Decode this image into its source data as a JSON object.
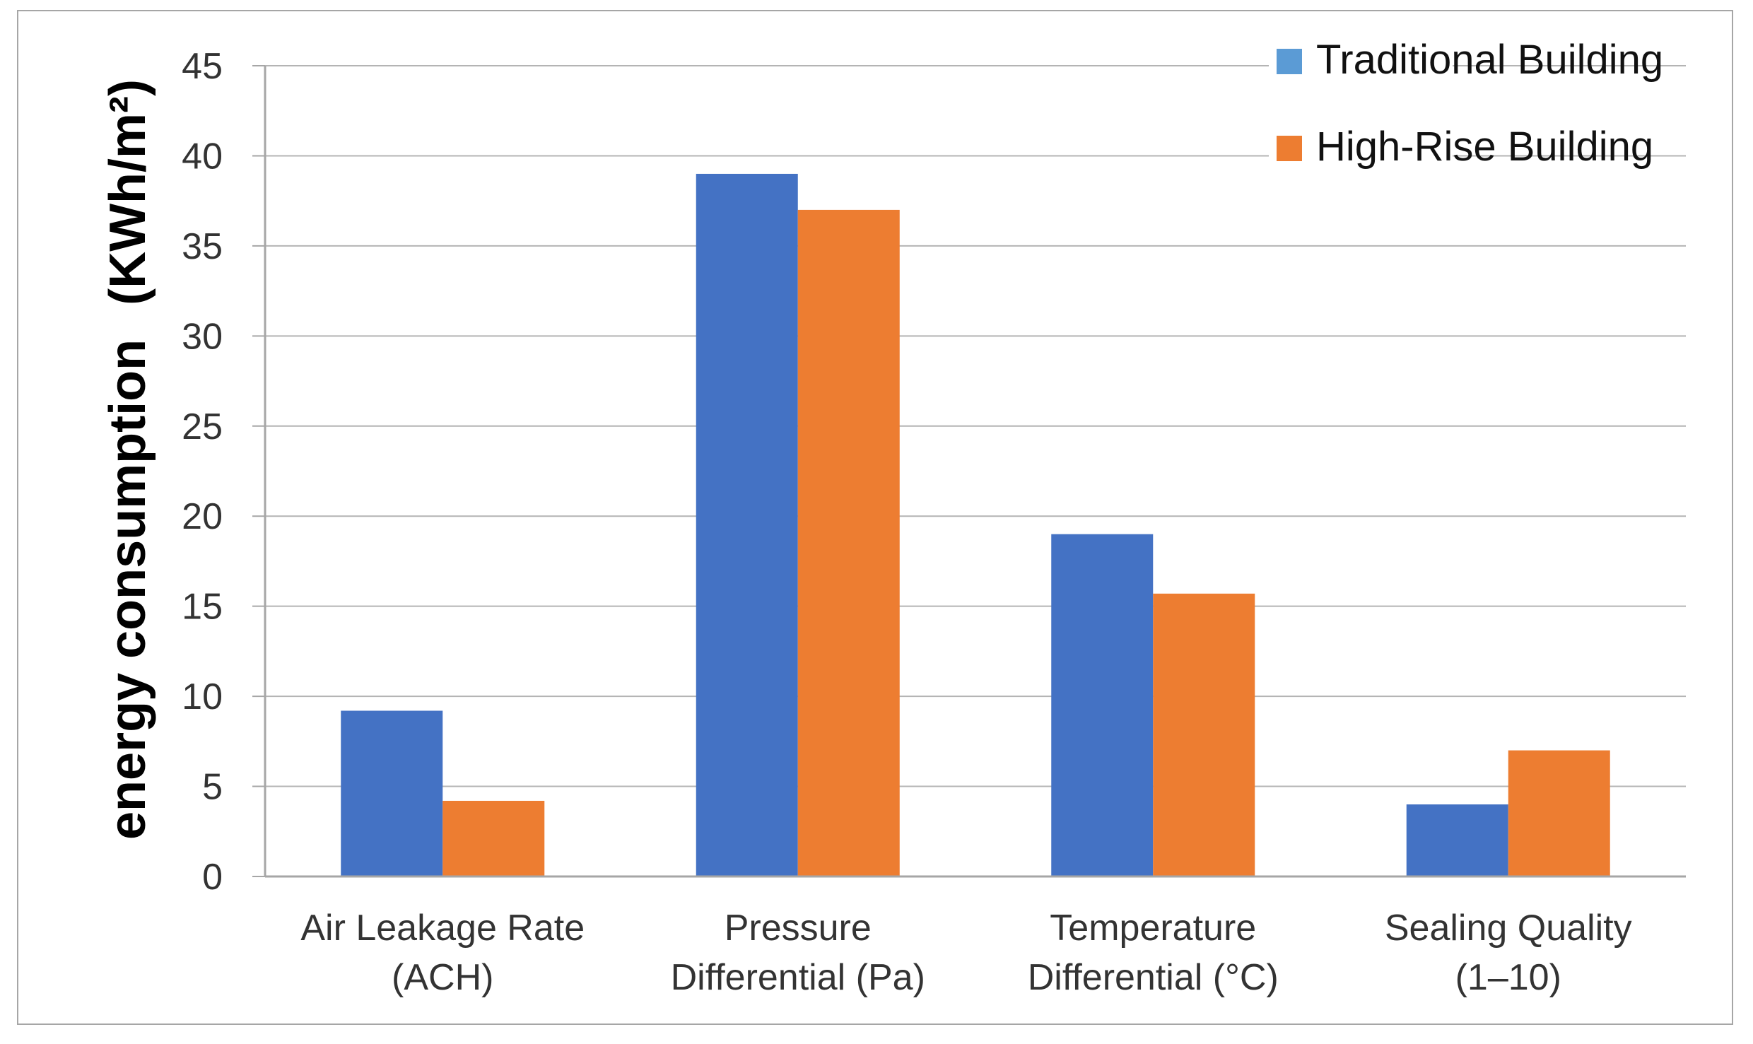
{
  "chart_data": {
    "type": "bar",
    "title": "",
    "xlabel": "",
    "ylabel": "energy consumption",
    "ylabel_unit": "(KWh/m²)",
    "ylim": [
      0,
      45
    ],
    "ytick_step": 5,
    "yticks": [
      "0",
      "5",
      "10",
      "15",
      "20",
      "25",
      "30",
      "35",
      "40",
      "45"
    ],
    "grid": true,
    "legend_position": "top-right",
    "categories": [
      [
        "Air Leakage Rate",
        "(ACH)"
      ],
      [
        "Pressure",
        "Differential (Pa)"
      ],
      [
        "Temperature",
        "Differential (°C)"
      ],
      [
        "Sealing Quality",
        "(1–10)"
      ]
    ],
    "series": [
      {
        "name": "Traditional Building",
        "color": "#4472c4",
        "legend_color": "#5b9bd5",
        "values": [
          9.2,
          39.0,
          19.0,
          4.0
        ]
      },
      {
        "name": "High-Rise Building",
        "color": "#ed7d31",
        "legend_color": "#ed7d31",
        "values": [
          4.2,
          37.0,
          15.7,
          7.0
        ]
      }
    ]
  }
}
